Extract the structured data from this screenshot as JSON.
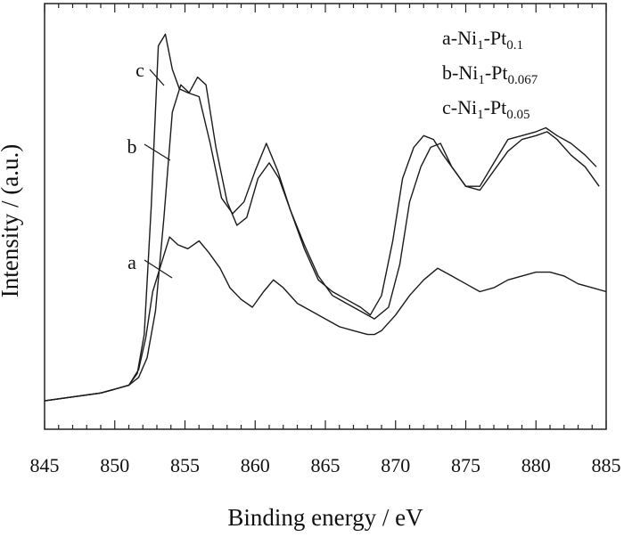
{
  "chart_data": {
    "type": "line",
    "xlabel": "Binding energy / eV",
    "ylabel": "Intensity / (a.u.)",
    "xlim": [
      845,
      885
    ],
    "ylim": [
      0,
      100
    ],
    "x_ticks": [
      845,
      850,
      855,
      860,
      865,
      870,
      875,
      880,
      885
    ],
    "x_tick_labels": [
      "845",
      "850",
      "855",
      "860",
      "865",
      "870",
      "875",
      "880",
      "885"
    ],
    "y_tick_labels": [],
    "grid": false,
    "legend": {
      "placement": "top-right",
      "entries": [
        {
          "id": "a",
          "prefix": "a-Ni",
          "sub1": "1",
          "mid": "-Pt",
          "sub2": "0.1"
        },
        {
          "id": "b",
          "prefix": "b-Ni",
          "sub1": "1",
          "mid": "-Pt",
          "sub2": "0.067"
        },
        {
          "id": "c",
          "prefix": "c-Ni",
          "sub1": "1",
          "mid": "-Pt",
          "sub2": "0.05"
        }
      ]
    },
    "series": [
      {
        "label": "a",
        "label_x": 853.3,
        "label_y": 36,
        "x": [
          845,
          847,
          849,
          850,
          851,
          851.7,
          852.2,
          852.7,
          853.3,
          853.9,
          854.5,
          855.2,
          856,
          856.7,
          857.5,
          858.2,
          859,
          859.8,
          860.6,
          861.3,
          862,
          863,
          864,
          865,
          866,
          867,
          868,
          868.5,
          869,
          870,
          871,
          872,
          873,
          874,
          875,
          876,
          877,
          878,
          879,
          880,
          881,
          882,
          883,
          884,
          885
        ],
        "y": [
          5,
          6,
          7,
          8,
          9,
          13,
          21,
          33,
          40,
          47,
          45,
          44,
          46,
          43,
          39,
          34,
          31,
          29,
          33,
          36,
          34,
          30,
          28,
          26,
          24,
          23,
          22,
          22,
          23,
          27,
          32,
          36,
          39,
          37,
          35,
          33,
          34,
          36,
          37,
          38,
          38,
          37,
          35,
          34,
          33
        ]
      },
      {
        "label": "b",
        "label_x": 854.0,
        "label_y": 69,
        "x": [
          845,
          847,
          849,
          850,
          851,
          851.7,
          852.3,
          852.9,
          853.5,
          854.1,
          854.7,
          855.3,
          855.9,
          856.5,
          857.2,
          858,
          858.7,
          859.4,
          860.2,
          861,
          861.7,
          862.5,
          863.5,
          864.5,
          865.5,
          866.5,
          867.5,
          868.5,
          869.5,
          870.3,
          871,
          871.8,
          872.5,
          873.2,
          874,
          875,
          876,
          877,
          878,
          879,
          880,
          880.8,
          881.5,
          882.5,
          883.5,
          884.5
        ],
        "y": [
          5,
          6,
          7,
          8,
          9,
          11,
          16,
          28,
          52,
          79,
          86,
          84,
          88,
          86,
          70,
          56,
          50,
          52,
          62,
          66,
          62,
          54,
          45,
          37,
          32,
          30,
          28,
          26,
          29,
          40,
          56,
          65,
          70,
          71,
          65,
          60,
          59,
          64,
          69,
          72,
          73,
          74,
          72,
          68,
          65,
          60
        ]
      },
      {
        "label": "c",
        "label_x": 853.4,
        "label_y": 90,
        "x": [
          845,
          847,
          849,
          850,
          851,
          851.6,
          852.1,
          852.6,
          853.1,
          853.6,
          854.1,
          854.6,
          855.2,
          856,
          856.8,
          857.6,
          858.4,
          859.2,
          860,
          860.8,
          861.6,
          862.5,
          863.5,
          864.5,
          865.5,
          866.5,
          867.5,
          868.2,
          869,
          869.8,
          870.5,
          871.3,
          872,
          872.7,
          873.4,
          874.2,
          875,
          876,
          877,
          878,
          879,
          880,
          880.7,
          881.5,
          882.5,
          883.5,
          884.3
        ],
        "y": [
          5,
          6,
          7,
          8,
          9,
          12,
          22,
          55,
          96,
          99,
          90,
          85,
          84,
          83,
          71,
          57,
          53,
          56,
          64,
          71,
          64,
          54,
          44,
          36,
          33,
          31,
          29,
          27,
          32,
          46,
          62,
          70,
          73,
          72,
          68,
          64,
          60,
          60,
          66,
          72,
          73,
          74,
          75,
          73,
          71,
          68,
          65
        ]
      }
    ]
  }
}
